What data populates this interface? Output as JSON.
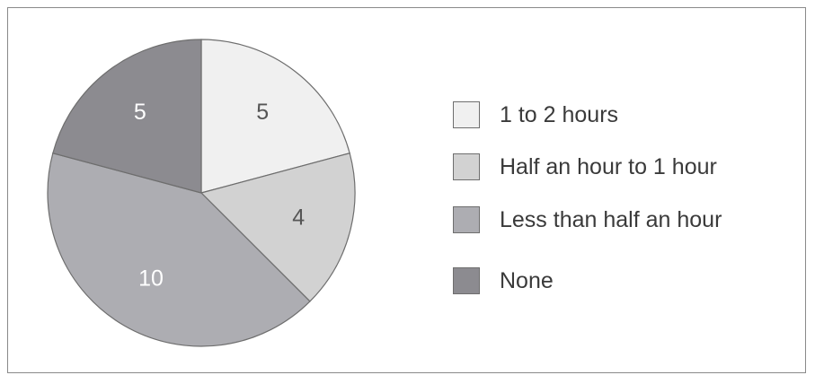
{
  "chart_data": {
    "type": "pie",
    "title": "",
    "slices": [
      {
        "label": "1 to 2 hours",
        "value": 5,
        "color": "#f0f0f0",
        "text_color": "#555555"
      },
      {
        "label": "Half an hour to 1 hour",
        "value": 4,
        "color": "#d2d2d2",
        "text_color": "#555555"
      },
      {
        "label": "Less than half an hour",
        "value": 10,
        "color": "#adadb2",
        "text_color": "#ffffff"
      },
      {
        "label": "None",
        "value": 5,
        "color": "#8c8b90",
        "text_color": "#ffffff"
      }
    ],
    "start_angle": "12 o'clock",
    "direction": "clockwise",
    "legend_position": "right"
  }
}
